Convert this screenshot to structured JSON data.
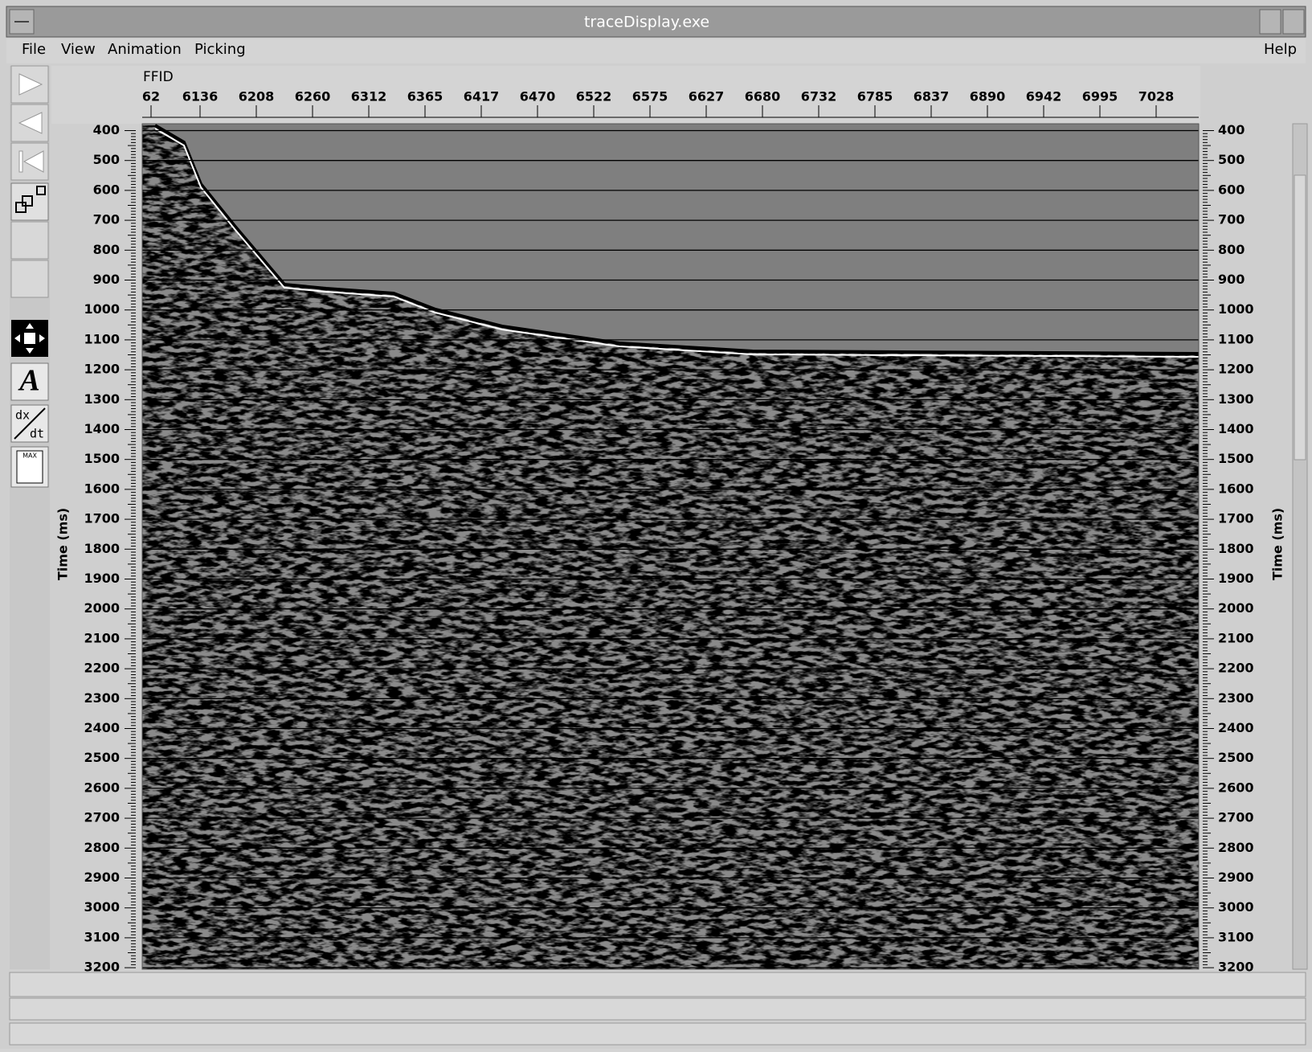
{
  "window": {
    "title": "traceDisplay.exe"
  },
  "menu": [
    "File",
    "View",
    "Animation",
    "Picking"
  ],
  "help": "Help",
  "toolbar": {
    "text_tool": "A",
    "derivative_tool": {
      "numerator": "dx",
      "denominator": "dt"
    },
    "max_tool": "MAX"
  },
  "plot": {
    "x_axis_label": "FFID",
    "x_ticks": [
      62,
      6136,
      6208,
      6260,
      6312,
      6365,
      6417,
      6470,
      6522,
      6575,
      6627,
      6680,
      6732,
      6785,
      6837,
      6890,
      6942,
      6995,
      7028
    ],
    "y_axis_label": "Time (ms)",
    "y_ticks": [
      400,
      500,
      600,
      700,
      800,
      900,
      1000,
      1100,
      1200,
      1300,
      1400,
      1500,
      1600,
      1700,
      1800,
      1900,
      2000,
      2100,
      2200,
      2300,
      2400,
      2500,
      2600,
      2700,
      2800,
      2900,
      3000,
      3100,
      3200
    ]
  }
}
